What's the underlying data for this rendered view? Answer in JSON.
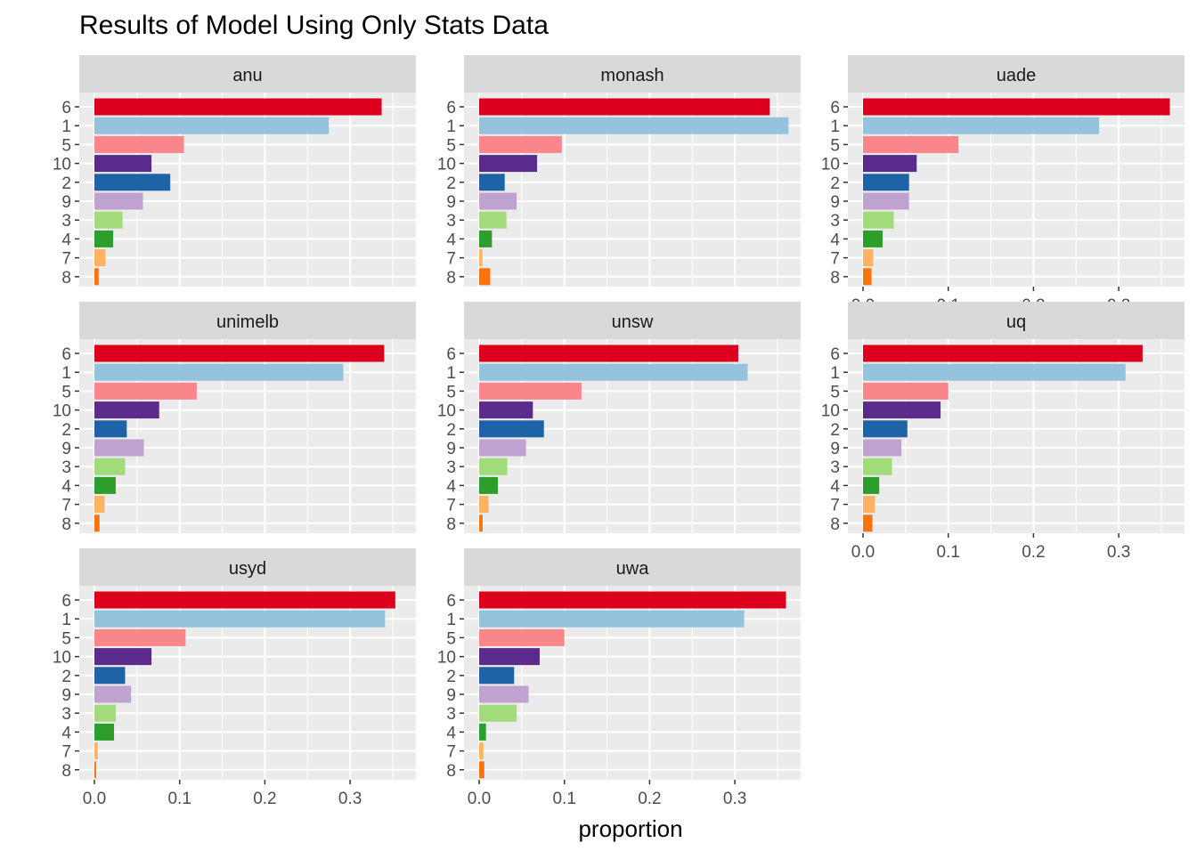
{
  "chart_data": {
    "type": "bar",
    "orientation": "horizontal",
    "title": "Results of Model Using Only Stats Data",
    "xlabel": "proportion",
    "ylabel": "",
    "xlim": [
      0,
      0.36
    ],
    "x_ticks": [
      "0.0",
      "0.1",
      "0.2",
      "0.3"
    ],
    "x_tick_values": [
      0,
      0.1,
      0.2,
      0.3
    ],
    "grid": true,
    "legend": "none",
    "categories": [
      "6",
      "1",
      "5",
      "10",
      "2",
      "9",
      "3",
      "4",
      "7",
      "8"
    ],
    "category_colors": {
      "6": "#DC001C",
      "1": "#95C3DE",
      "5": "#F8868A",
      "10": "#5B2B8B",
      "2": "#1F63A7",
      "9": "#C0A2D0",
      "3": "#A2DC7A",
      "4": "#2C9E29",
      "7": "#FCB463",
      "8": "#FB720F"
    },
    "panels": [
      {
        "name": "anu",
        "values": [
          0.337,
          0.275,
          0.105,
          0.067,
          0.089,
          0.057,
          0.033,
          0.022,
          0.013,
          0.005
        ]
      },
      {
        "name": "monash",
        "values": [
          0.341,
          0.363,
          0.097,
          0.068,
          0.03,
          0.044,
          0.032,
          0.015,
          0.004,
          0.013
        ]
      },
      {
        "name": "uade",
        "values": [
          0.36,
          0.277,
          0.112,
          0.063,
          0.054,
          0.054,
          0.036,
          0.023,
          0.012,
          0.01
        ]
      },
      {
        "name": "unimelb",
        "values": [
          0.34,
          0.292,
          0.12,
          0.076,
          0.038,
          0.058,
          0.036,
          0.025,
          0.012,
          0.006
        ]
      },
      {
        "name": "unsw",
        "values": [
          0.304,
          0.315,
          0.12,
          0.063,
          0.076,
          0.055,
          0.033,
          0.022,
          0.011,
          0.004
        ]
      },
      {
        "name": "uq",
        "values": [
          0.328,
          0.308,
          0.1,
          0.091,
          0.052,
          0.045,
          0.034,
          0.019,
          0.014,
          0.011
        ]
      },
      {
        "name": "usyd",
        "values": [
          0.353,
          0.341,
          0.107,
          0.067,
          0.036,
          0.043,
          0.025,
          0.023,
          0.004,
          0.002
        ]
      },
      {
        "name": "uwa",
        "values": [
          0.36,
          0.311,
          0.1,
          0.071,
          0.041,
          0.058,
          0.044,
          0.008,
          0.005,
          0.006
        ]
      }
    ]
  }
}
